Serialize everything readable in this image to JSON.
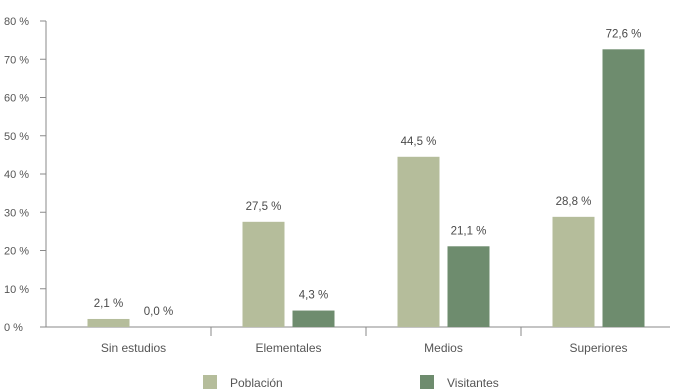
{
  "chart_data": {
    "type": "bar",
    "categories": [
      "Sin estudios",
      "Elementales",
      "Medios",
      "Superiores"
    ],
    "series": [
      {
        "name": "Población",
        "color": "#b5bd9b",
        "values": [
          2.1,
          27.5,
          44.5,
          28.8
        ],
        "labels": [
          "2,1 %",
          "27,5 %",
          "44,5 %",
          "28,8 %"
        ]
      },
      {
        "name": "Visitantes",
        "color": "#6e8c6e",
        "values": [
          0.0,
          4.3,
          21.1,
          72.6
        ],
        "labels": [
          "0,0 %",
          "4,3 %",
          "21,1 %",
          "72,6 %"
        ]
      }
    ],
    "ylim": [
      0,
      80
    ],
    "yticks": [
      {
        "value": 0,
        "label": "0 %"
      },
      {
        "value": 10,
        "label": "10 %"
      },
      {
        "value": 20,
        "label": "20 %"
      },
      {
        "value": 30,
        "label": "30 %"
      },
      {
        "value": 40,
        "label": "40 %"
      },
      {
        "value": 50,
        "label": "50 %"
      },
      {
        "value": 60,
        "label": "60 %"
      },
      {
        "value": 70,
        "label": "70 %"
      },
      {
        "value": 80,
        "label": "80 %"
      }
    ],
    "title": "",
    "xlabel": "",
    "ylabel": "",
    "grid": false,
    "legend_position": "bottom"
  }
}
